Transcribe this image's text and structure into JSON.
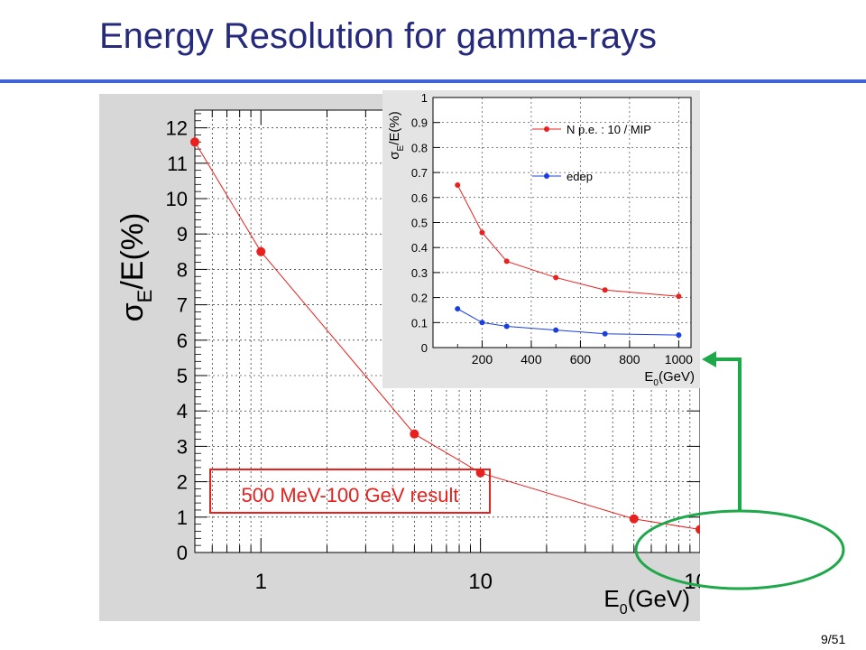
{
  "slide": {
    "title": "Energy Resolution for gamma-rays",
    "page_number": "9/51",
    "annotation_box_label": "500 MeV-100 GeV result"
  },
  "colors": {
    "title": "#262a7c",
    "rule": "#3f63d6",
    "red_series": "#e8201e",
    "blue_series": "#1a3fe0",
    "highlight": "#1fa84a",
    "plot_bg": "#d7d7d7"
  },
  "chart_data": [
    {
      "type": "line",
      "x_scale": "log",
      "xlim": [
        0.5,
        100
      ],
      "ylim": [
        0,
        12.5
      ],
      "ylabel_main": "σ",
      "ylabel_sub": "E",
      "ylabel_rest": "/E(%)",
      "xlabel_main": "E",
      "xlabel_sub": "0",
      "xlabel_rest": "(GeV)",
      "x_ticks": [
        {
          "value": 1,
          "label": "1"
        },
        {
          "value": 10,
          "label": "10"
        },
        {
          "value": 100,
          "label": "10",
          "sup": "2"
        }
      ],
      "y_ticks": [
        0,
        1,
        2,
        3,
        4,
        5,
        6,
        7,
        8,
        9,
        10,
        11,
        12
      ],
      "y_tick_labels": [
        "0",
        "1",
        "2",
        "3",
        "4",
        "5",
        "6",
        "7",
        "8",
        "9",
        "10",
        "11",
        "12"
      ],
      "grid": true,
      "series": [
        {
          "x": [
            0.5,
            1,
            5,
            10,
            50,
            100
          ],
          "y": [
            11.6,
            8.5,
            3.35,
            2.25,
            0.95,
            0.65
          ]
        }
      ]
    },
    {
      "type": "line",
      "xlim": [
        0,
        1050
      ],
      "ylim": [
        0,
        1
      ],
      "ylabel_main": "σ",
      "ylabel_sub": "E",
      "ylabel_rest": "/E(%)",
      "xlabel_main": "E",
      "xlabel_sub": "0",
      "xlabel_rest": "(GeV)",
      "x_ticks": [
        200,
        400,
        600,
        800,
        1000
      ],
      "x_tick_labels": [
        "200",
        "400",
        "600",
        "800",
        "1000"
      ],
      "y_ticks": [
        0,
        0.1,
        0.2,
        0.3,
        0.4,
        0.5,
        0.6,
        0.7,
        0.8,
        0.9,
        1
      ],
      "y_tick_labels": [
        "0",
        "0.1",
        "0.2",
        "0.3",
        "0.4",
        "0.5",
        "0.6",
        "0.7",
        "0.8",
        "0.9",
        "1"
      ],
      "legend": "top-right",
      "grid": true,
      "series": [
        {
          "name": "N p.e. : 10 / MIP",
          "x": [
            100,
            200,
            300,
            500,
            700,
            1000
          ],
          "y": [
            0.65,
            0.46,
            0.345,
            0.28,
            0.23,
            0.205
          ]
        },
        {
          "name": "edep",
          "x": [
            100,
            200,
            300,
            500,
            700,
            1000
          ],
          "y": [
            0.155,
            0.1,
            0.085,
            0.07,
            0.055,
            0.05
          ]
        }
      ]
    }
  ]
}
